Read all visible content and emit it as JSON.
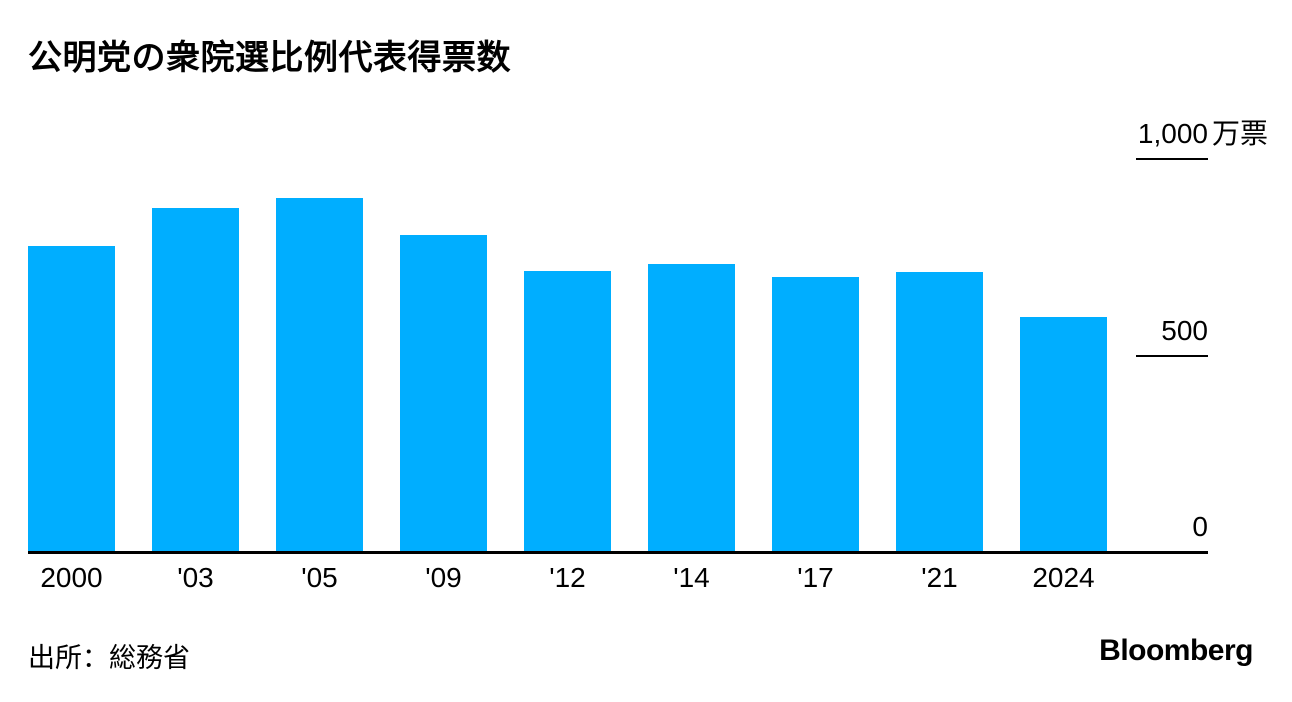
{
  "chart_data": {
    "type": "bar",
    "title": "公明党の衆院選比例代表得票数",
    "categories": [
      "2000",
      "'03",
      "'05",
      "'09",
      "'12",
      "'14",
      "'17",
      "'21",
      "2024"
    ],
    "values": [
      776,
      873,
      899,
      805,
      712,
      731,
      698,
      711,
      596
    ],
    "value_unit": "万票",
    "ylim": [
      0,
      1000
    ],
    "yticks": [
      {
        "value": 1000,
        "label": "1,000",
        "unit": "万票"
      },
      {
        "value": 500,
        "label": "500",
        "unit": ""
      },
      {
        "value": 0,
        "label": "0",
        "unit": ""
      }
    ],
    "bar_color": "#00AEFF",
    "axis_color": "#000000",
    "grid": false,
    "legend": false,
    "ytick_side": "right"
  },
  "footer": {
    "source": "出所：総務省",
    "brand": "Bloomberg"
  }
}
